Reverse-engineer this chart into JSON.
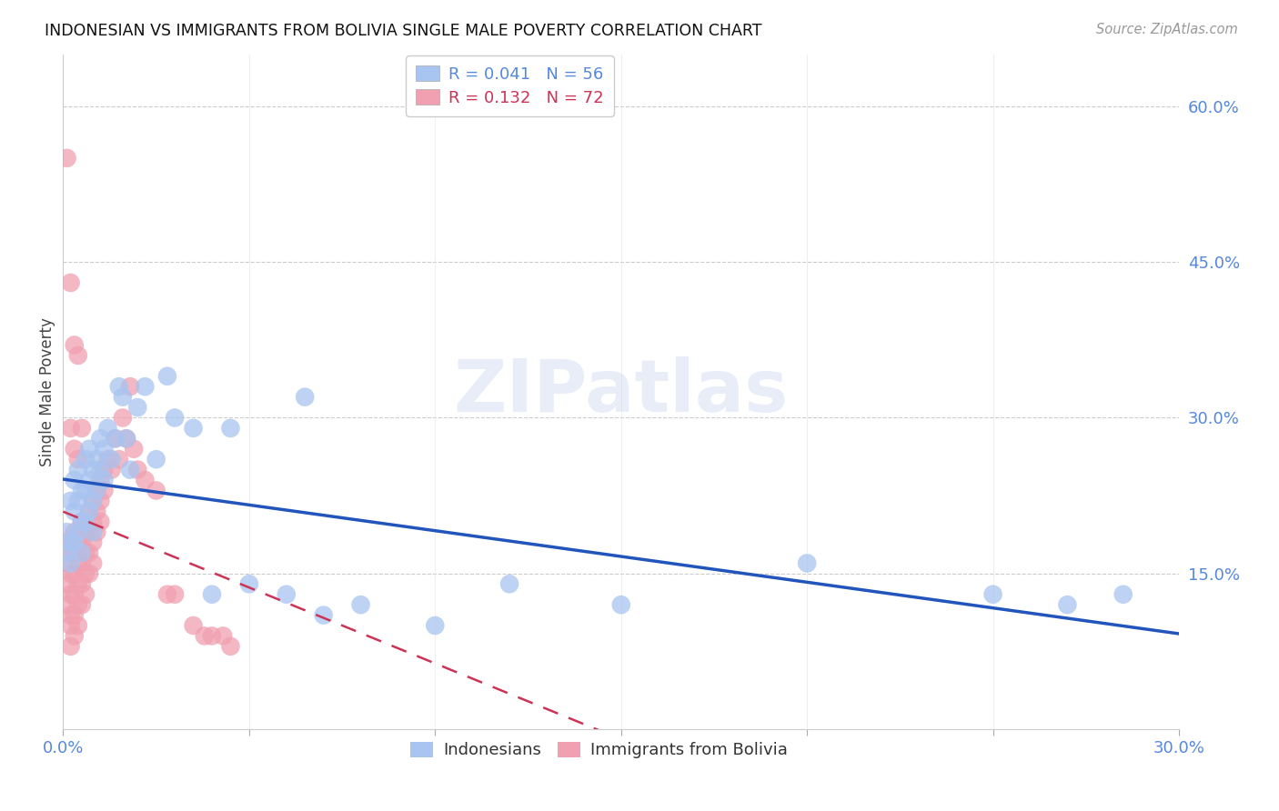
{
  "title": "INDONESIAN VS IMMIGRANTS FROM BOLIVIA SINGLE MALE POVERTY CORRELATION CHART",
  "source": "Source: ZipAtlas.com",
  "ylabel": "Single Male Poverty",
  "xlim": [
    0.0,
    0.3
  ],
  "ylim": [
    0.0,
    0.65
  ],
  "legend1_R": "0.041",
  "legend1_N": "56",
  "legend2_R": "0.132",
  "legend2_N": "72",
  "blue_color": "#a8c4f0",
  "pink_color": "#f0a0b0",
  "blue_line_color": "#2255bb",
  "pink_line_color": "#cc3355",
  "right_axis_color": "#5588dd",
  "watermark": "ZIPatlas",
  "indo_x": [
    0.001,
    0.001,
    0.002,
    0.002,
    0.002,
    0.003,
    0.003,
    0.003,
    0.004,
    0.004,
    0.004,
    0.005,
    0.005,
    0.005,
    0.006,
    0.006,
    0.006,
    0.007,
    0.007,
    0.007,
    0.008,
    0.008,
    0.008,
    0.009,
    0.009,
    0.01,
    0.01,
    0.011,
    0.011,
    0.012,
    0.013,
    0.014,
    0.015,
    0.016,
    0.017,
    0.018,
    0.02,
    0.022,
    0.025,
    0.028,
    0.03,
    0.035,
    0.04,
    0.045,
    0.05,
    0.06,
    0.065,
    0.07,
    0.08,
    0.1,
    0.12,
    0.15,
    0.2,
    0.25,
    0.27,
    0.285
  ],
  "indo_y": [
    0.19,
    0.17,
    0.22,
    0.18,
    0.16,
    0.24,
    0.21,
    0.18,
    0.25,
    0.22,
    0.19,
    0.23,
    0.2,
    0.17,
    0.26,
    0.23,
    0.2,
    0.27,
    0.24,
    0.21,
    0.25,
    0.22,
    0.19,
    0.26,
    0.23,
    0.28,
    0.25,
    0.27,
    0.24,
    0.29,
    0.26,
    0.28,
    0.33,
    0.32,
    0.28,
    0.25,
    0.31,
    0.33,
    0.26,
    0.34,
    0.3,
    0.29,
    0.13,
    0.29,
    0.14,
    0.13,
    0.32,
    0.11,
    0.12,
    0.1,
    0.14,
    0.12,
    0.16,
    0.13,
    0.12,
    0.13
  ],
  "boliv_x": [
    0.001,
    0.001,
    0.001,
    0.001,
    0.002,
    0.002,
    0.002,
    0.002,
    0.002,
    0.002,
    0.003,
    0.003,
    0.003,
    0.003,
    0.003,
    0.003,
    0.004,
    0.004,
    0.004,
    0.004,
    0.004,
    0.005,
    0.005,
    0.005,
    0.005,
    0.005,
    0.006,
    0.006,
    0.006,
    0.006,
    0.007,
    0.007,
    0.007,
    0.007,
    0.008,
    0.008,
    0.008,
    0.008,
    0.009,
    0.009,
    0.009,
    0.01,
    0.01,
    0.01,
    0.011,
    0.011,
    0.012,
    0.013,
    0.014,
    0.015,
    0.016,
    0.017,
    0.018,
    0.019,
    0.02,
    0.022,
    0.025,
    0.028,
    0.03,
    0.035,
    0.038,
    0.04,
    0.043,
    0.045,
    0.001,
    0.002,
    0.002,
    0.003,
    0.003,
    0.004,
    0.004,
    0.005
  ],
  "boliv_y": [
    0.18,
    0.16,
    0.14,
    0.12,
    0.17,
    0.15,
    0.13,
    0.11,
    0.1,
    0.08,
    0.19,
    0.17,
    0.15,
    0.13,
    0.11,
    0.09,
    0.18,
    0.16,
    0.14,
    0.12,
    0.1,
    0.2,
    0.18,
    0.16,
    0.14,
    0.12,
    0.19,
    0.17,
    0.15,
    0.13,
    0.21,
    0.19,
    0.17,
    0.15,
    0.22,
    0.2,
    0.18,
    0.16,
    0.23,
    0.21,
    0.19,
    0.24,
    0.22,
    0.2,
    0.25,
    0.23,
    0.26,
    0.25,
    0.28,
    0.26,
    0.3,
    0.28,
    0.33,
    0.27,
    0.25,
    0.24,
    0.23,
    0.13,
    0.13,
    0.1,
    0.09,
    0.09,
    0.09,
    0.08,
    0.55,
    0.43,
    0.29,
    0.37,
    0.27,
    0.36,
    0.26,
    0.29
  ]
}
